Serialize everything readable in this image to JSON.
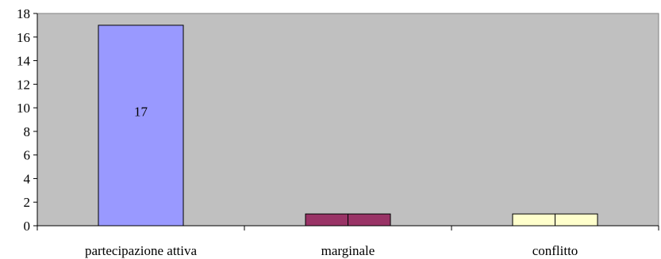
{
  "chart_data": {
    "type": "bar",
    "categories": [
      "partecipazione attiva",
      "marginale",
      "conflitto"
    ],
    "series": [
      {
        "name": "",
        "values": [
          17,
          1,
          1
        ]
      }
    ],
    "bar_colors": [
      "#9999FF",
      "#993366",
      "#FFFFCC"
    ],
    "data_labels": [
      "17",
      "",
      ""
    ],
    "ylim": [
      0,
      18
    ],
    "y_ticks": [
      "0",
      "2",
      "4",
      "6",
      "8",
      "10",
      "12",
      "14",
      "16",
      "18"
    ],
    "plot_background": "#C0C0C0",
    "grid": false,
    "legend": "none",
    "title": "",
    "xlabel": "",
    "ylabel": ""
  }
}
